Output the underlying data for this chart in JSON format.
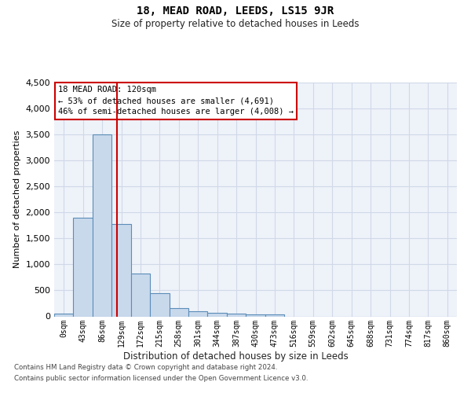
{
  "title": "18, MEAD ROAD, LEEDS, LS15 9JR",
  "subtitle": "Size of property relative to detached houses in Leeds",
  "xlabel": "Distribution of detached houses by size in Leeds",
  "ylabel": "Number of detached properties",
  "footer_line1": "Contains HM Land Registry data © Crown copyright and database right 2024.",
  "footer_line2": "Contains public sector information licensed under the Open Government Licence v3.0.",
  "annotation_line1": "18 MEAD ROAD: 120sqm",
  "annotation_line2": "← 53% of detached houses are smaller (4,691)",
  "annotation_line3": "46% of semi-detached houses are larger (4,008) →",
  "bar_labels": [
    "0sqm",
    "43sqm",
    "86sqm",
    "129sqm",
    "172sqm",
    "215sqm",
    "258sqm",
    "301sqm",
    "344sqm",
    "387sqm",
    "430sqm",
    "473sqm",
    "516sqm",
    "559sqm",
    "602sqm",
    "645sqm",
    "688sqm",
    "731sqm",
    "774sqm",
    "817sqm",
    "860sqm"
  ],
  "bar_values": [
    50,
    1900,
    3500,
    1780,
    830,
    450,
    160,
    95,
    65,
    55,
    40,
    35,
    0,
    0,
    0,
    0,
    0,
    0,
    0,
    0,
    0
  ],
  "bar_color": "#c9d9ec",
  "bar_edge_color": "#5b8db8",
  "vline_x": 2.79,
  "vline_color": "#cc0000",
  "annotation_box_edgecolor": "#cc0000",
  "ylim": [
    0,
    4500
  ],
  "xlim_left": -0.5,
  "xlim_right": 20.5,
  "grid_color": "#d0d8e8",
  "bg_color": "#eef2f9"
}
